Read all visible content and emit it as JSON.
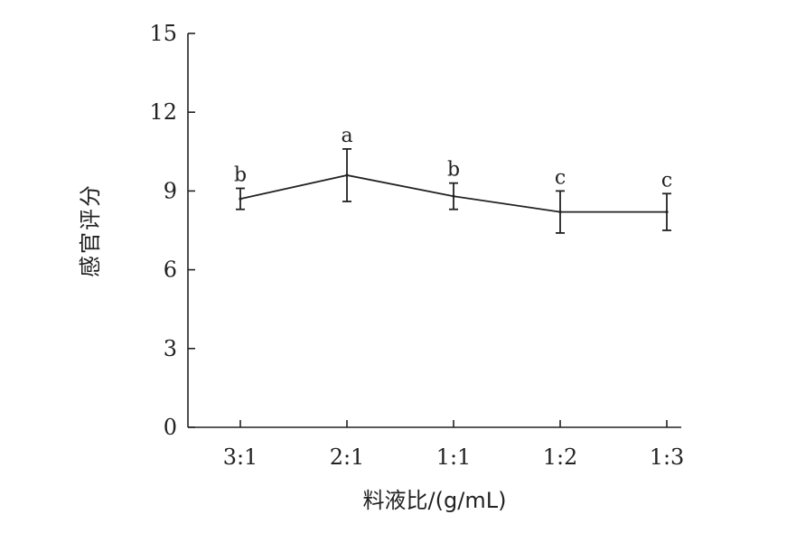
{
  "chart_data": {
    "type": "line",
    "categories": [
      "3:1",
      "2:1",
      "1:1",
      "1:2",
      "1:3"
    ],
    "series": [
      {
        "values": [
          8.7,
          9.6,
          8.8,
          8.2,
          8.2
        ],
        "error": [
          0.4,
          1.0,
          0.5,
          0.8,
          0.7
        ],
        "significance": [
          "b",
          "a",
          "b",
          "c",
          "c"
        ]
      }
    ],
    "xlabel": "料液比/(g/mL)",
    "ylabel": "感官评分",
    "ylim": [
      0,
      15
    ],
    "yticks": [
      0,
      3,
      6,
      9,
      12,
      15
    ],
    "grid": false,
    "colors": {
      "line": "#222222"
    }
  }
}
